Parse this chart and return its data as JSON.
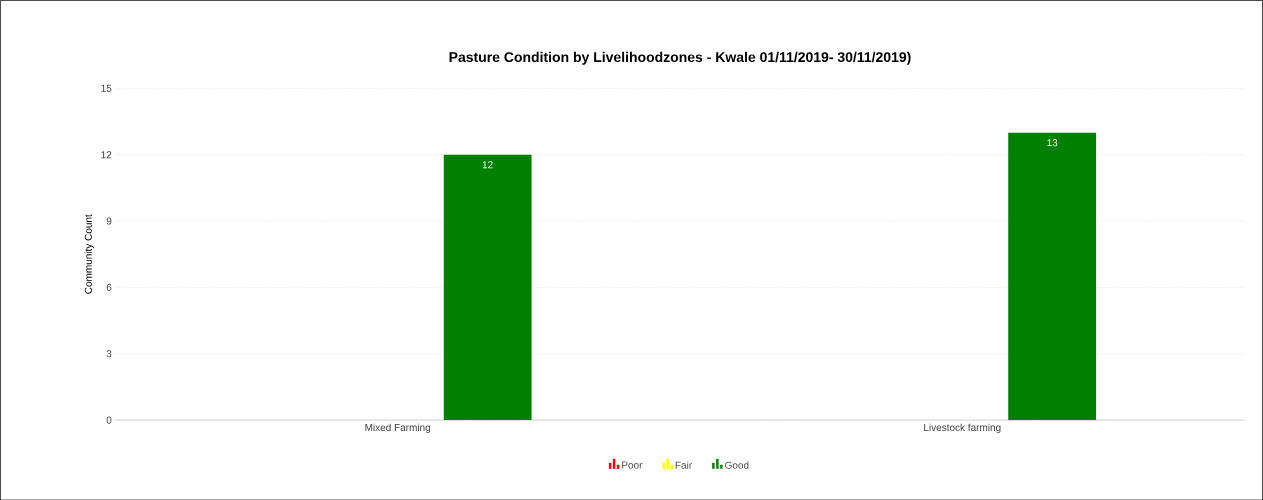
{
  "chart_data": {
    "type": "bar",
    "title": "Pasture Condition by Livelihoodzones - Kwale 01/11/2019- 30/11/2019)",
    "ylabel": "Community Count",
    "categories": [
      "Mixed Farming",
      "Livestock farming"
    ],
    "series": [
      {
        "name": "Poor",
        "color": "#ff0000",
        "values": [
          0,
          0
        ],
        "value_labels": [
          null,
          null
        ]
      },
      {
        "name": "Fair",
        "color": "#ffff00",
        "values": [
          0,
          0
        ],
        "value_labels": [
          null,
          null
        ]
      },
      {
        "name": "Good",
        "color": "#008000",
        "values": [
          12,
          13
        ],
        "value_labels": [
          "12",
          "13"
        ]
      }
    ],
    "ylim": [
      0,
      15
    ],
    "yticks": [
      0,
      3,
      6,
      9,
      12,
      15
    ],
    "grid": "y",
    "legend": "bottom"
  }
}
